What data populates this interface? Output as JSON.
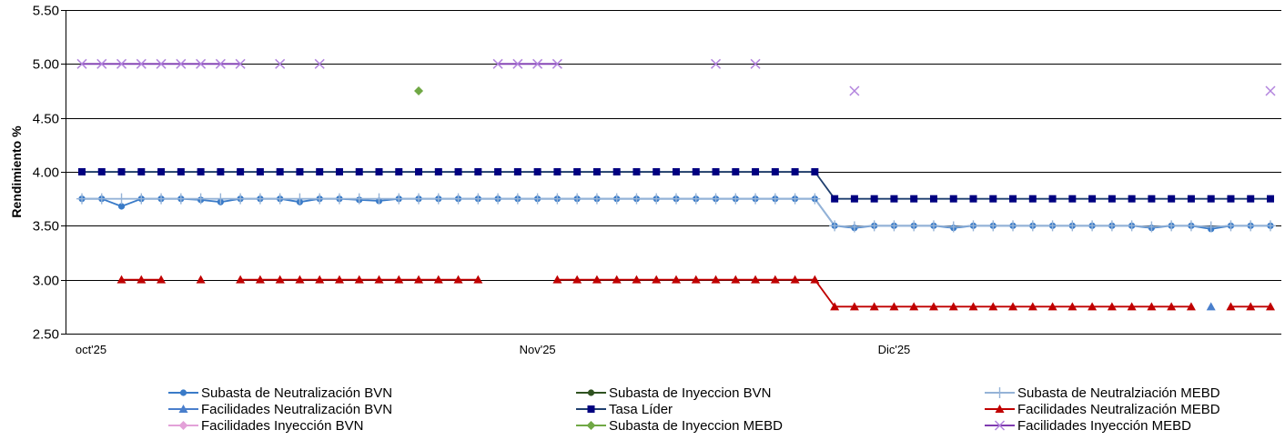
{
  "chart_data": {
    "type": "line",
    "ylabel": "Rendimiento %",
    "ylim": [
      2.5,
      5.5
    ],
    "yticks": [
      "2.50",
      "3.00",
      "3.50",
      "4.00",
      "4.50",
      "5.00",
      "5.50"
    ],
    "grid": true,
    "legend_position": "bottom",
    "categories": [
      "oct'25",
      "",
      "",
      "",
      "",
      "",
      "",
      "",
      "",
      "",
      "",
      "",
      "",
      "",
      "",
      "",
      "",
      "",
      "",
      "",
      "",
      "",
      "",
      "Nov'25",
      "",
      "",
      "",
      "",
      "",
      "",
      "",
      "",
      "",
      "",
      "",
      "",
      "",
      "",
      "",
      "",
      "",
      "Dic'25",
      "",
      "",
      "",
      "",
      "",
      "",
      "",
      "",
      "",
      "",
      "",
      "",
      "",
      "",
      "",
      "",
      "",
      "",
      ""
    ],
    "series": [
      {
        "name": "Subasta de Neutralización BVN",
        "color": "#3A7BC8",
        "marker": "circle",
        "values": [
          3.75,
          3.75,
          3.68,
          3.75,
          3.75,
          3.75,
          3.74,
          3.72,
          3.75,
          3.75,
          3.75,
          3.72,
          3.75,
          3.75,
          3.74,
          3.73,
          3.75,
          3.75,
          3.75,
          3.75,
          3.75,
          3.75,
          3.75,
          3.75,
          3.75,
          3.75,
          3.75,
          3.75,
          3.75,
          3.75,
          3.75,
          3.75,
          3.75,
          3.75,
          3.75,
          3.75,
          3.75,
          3.75,
          3.5,
          3.48,
          3.5,
          3.5,
          3.5,
          3.5,
          3.48,
          3.5,
          3.5,
          3.5,
          3.5,
          3.5,
          3.5,
          3.5,
          3.5,
          3.5,
          3.48,
          3.5,
          3.5,
          3.47,
          3.5,
          3.5,
          3.5
        ]
      },
      {
        "name": "Subasta de Inyeccion BVN",
        "color": "#2F5220",
        "marker": "circle",
        "values": [
          null,
          null,
          null,
          null,
          null,
          null,
          null,
          null,
          null,
          null,
          null,
          null,
          null,
          null,
          null,
          null,
          null,
          null,
          null,
          null,
          null,
          null,
          null,
          null,
          null,
          null,
          null,
          null,
          null,
          null,
          null,
          null,
          null,
          null,
          null,
          null,
          null,
          null,
          null,
          null,
          null,
          null,
          null,
          null,
          null,
          null,
          null,
          null,
          null,
          null,
          null,
          null,
          null,
          null,
          null,
          null,
          null,
          null,
          null,
          null,
          null
        ]
      },
      {
        "name": "Subasta de Neutralziación MEBD",
        "color": "#95B3D7",
        "marker": "plus",
        "values": [
          3.75,
          3.75,
          3.75,
          3.75,
          3.75,
          3.75,
          3.75,
          3.75,
          3.75,
          3.75,
          3.75,
          3.75,
          3.75,
          3.75,
          3.75,
          3.75,
          3.75,
          3.75,
          3.75,
          3.75,
          3.75,
          3.75,
          3.75,
          3.75,
          3.75,
          3.75,
          3.75,
          3.75,
          3.75,
          3.75,
          3.75,
          3.75,
          3.75,
          3.75,
          3.75,
          3.75,
          3.75,
          3.75,
          3.5,
          3.49,
          3.5,
          3.5,
          3.5,
          3.5,
          3.49,
          3.5,
          3.5,
          3.5,
          3.5,
          3.5,
          3.5,
          3.5,
          3.5,
          3.5,
          3.49,
          3.5,
          3.5,
          3.49,
          3.5,
          3.5,
          3.5
        ]
      },
      {
        "name": "Facilidades Neutralización BVN",
        "color": "#4A7FCC",
        "marker": "triangle",
        "values": [
          null,
          null,
          null,
          null,
          null,
          null,
          null,
          null,
          null,
          null,
          null,
          null,
          null,
          null,
          null,
          null,
          null,
          null,
          null,
          null,
          null,
          null,
          null,
          null,
          null,
          null,
          null,
          null,
          null,
          null,
          null,
          null,
          null,
          null,
          null,
          null,
          null,
          null,
          null,
          null,
          null,
          null,
          null,
          null,
          null,
          null,
          null,
          null,
          null,
          null,
          null,
          null,
          null,
          null,
          null,
          null,
          null,
          2.75,
          null,
          null,
          null
        ]
      },
      {
        "name": "Tasa Líder",
        "color": "#1F3E6E",
        "marker_color": "#000080",
        "marker": "square",
        "values": [
          4.0,
          4.0,
          4.0,
          4.0,
          4.0,
          4.0,
          4.0,
          4.0,
          4.0,
          4.0,
          4.0,
          4.0,
          4.0,
          4.0,
          4.0,
          4.0,
          4.0,
          4.0,
          4.0,
          4.0,
          4.0,
          4.0,
          4.0,
          4.0,
          4.0,
          4.0,
          4.0,
          4.0,
          4.0,
          4.0,
          4.0,
          4.0,
          4.0,
          4.0,
          4.0,
          4.0,
          4.0,
          4.0,
          3.75,
          3.75,
          3.75,
          3.75,
          3.75,
          3.75,
          3.75,
          3.75,
          3.75,
          3.75,
          3.75,
          3.75,
          3.75,
          3.75,
          3.75,
          3.75,
          3.75,
          3.75,
          3.75,
          3.75,
          3.75,
          3.75,
          3.75
        ]
      },
      {
        "name": "Facilidades Neutralización MEBD",
        "color": "#C00000",
        "marker": "triangle",
        "values": [
          null,
          null,
          3.0,
          3.0,
          3.0,
          null,
          3.0,
          null,
          3.0,
          3.0,
          3.0,
          3.0,
          3.0,
          3.0,
          3.0,
          3.0,
          3.0,
          3.0,
          3.0,
          3.0,
          3.0,
          null,
          null,
          null,
          3.0,
          3.0,
          3.0,
          3.0,
          3.0,
          3.0,
          3.0,
          3.0,
          3.0,
          3.0,
          3.0,
          3.0,
          3.0,
          3.0,
          2.75,
          2.75,
          2.75,
          2.75,
          2.75,
          2.75,
          2.75,
          2.75,
          2.75,
          2.75,
          2.75,
          2.75,
          2.75,
          2.75,
          2.75,
          2.75,
          2.75,
          2.75,
          2.75,
          null,
          2.75,
          2.75,
          2.75
        ]
      },
      {
        "name": "Facilidades Inyección BVN",
        "color": "#E3A1D8",
        "marker": "diamond",
        "values": [
          null,
          null,
          null,
          null,
          null,
          null,
          null,
          null,
          null,
          null,
          null,
          null,
          null,
          null,
          null,
          null,
          null,
          null,
          null,
          null,
          null,
          null,
          null,
          null,
          null,
          null,
          null,
          null,
          null,
          null,
          null,
          null,
          null,
          null,
          null,
          null,
          null,
          null,
          null,
          null,
          null,
          null,
          null,
          null,
          null,
          null,
          null,
          null,
          null,
          null,
          null,
          null,
          null,
          null,
          null,
          null,
          null,
          null,
          null,
          null,
          null
        ]
      },
      {
        "name": "Subasta de Inyeccion MEBD",
        "color": "#70A845",
        "marker": "diamond",
        "values": [
          null,
          null,
          null,
          null,
          null,
          null,
          null,
          null,
          null,
          null,
          null,
          null,
          null,
          null,
          null,
          null,
          null,
          4.75,
          null,
          null,
          null,
          null,
          null,
          null,
          null,
          null,
          null,
          null,
          null,
          null,
          null,
          null,
          null,
          null,
          null,
          null,
          null,
          null,
          null,
          null,
          null,
          null,
          null,
          null,
          null,
          null,
          null,
          null,
          null,
          null,
          null,
          null,
          null,
          null,
          null,
          null,
          null,
          null,
          null,
          null,
          null
        ]
      },
      {
        "name": "Facilidades Inyección MEBD",
        "color": "#7F3BB0",
        "marker_color": "#B283DD",
        "marker": "x",
        "values": [
          5.0,
          5.0,
          5.0,
          5.0,
          5.0,
          5.0,
          5.0,
          5.0,
          5.0,
          null,
          5.0,
          null,
          5.0,
          null,
          null,
          null,
          null,
          null,
          null,
          null,
          null,
          5.0,
          5.0,
          5.0,
          5.0,
          null,
          null,
          null,
          null,
          null,
          null,
          null,
          5.0,
          null,
          5.0,
          null,
          null,
          null,
          null,
          4.75,
          null,
          null,
          null,
          null,
          null,
          null,
          null,
          null,
          null,
          null,
          null,
          null,
          null,
          null,
          null,
          null,
          null,
          null,
          null,
          null,
          4.75
        ]
      }
    ]
  }
}
